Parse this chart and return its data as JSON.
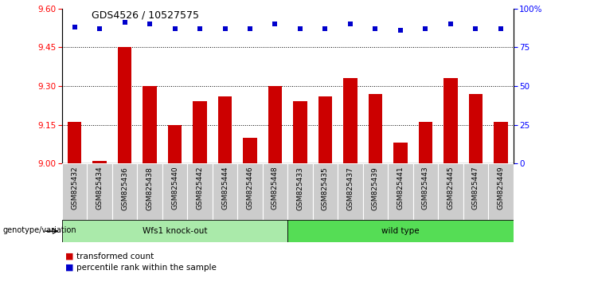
{
  "title": "GDS4526 / 10527575",
  "samples": [
    "GSM825432",
    "GSM825434",
    "GSM825436",
    "GSM825438",
    "GSM825440",
    "GSM825442",
    "GSM825444",
    "GSM825446",
    "GSM825448",
    "GSM825433",
    "GSM825435",
    "GSM825437",
    "GSM825439",
    "GSM825441",
    "GSM825443",
    "GSM825445",
    "GSM825447",
    "GSM825449"
  ],
  "bar_values": [
    9.16,
    9.01,
    9.45,
    9.3,
    9.15,
    9.24,
    9.26,
    9.1,
    9.3,
    9.24,
    9.26,
    9.33,
    9.27,
    9.08,
    9.16,
    9.33,
    9.27,
    9.16
  ],
  "percentile_values": [
    88,
    87,
    91,
    90,
    87,
    87,
    87,
    87,
    90,
    87,
    87,
    90,
    87,
    86,
    87,
    90,
    87,
    87
  ],
  "ylim_left": [
    9.0,
    9.6
  ],
  "ylim_right": [
    0,
    100
  ],
  "yticks_left": [
    9.0,
    9.15,
    9.3,
    9.45,
    9.6
  ],
  "yticks_right": [
    0,
    25,
    50,
    75,
    100
  ],
  "ytick_labels_right": [
    "0",
    "25",
    "50",
    "75",
    "100%"
  ],
  "hlines": [
    9.15,
    9.3,
    9.45
  ],
  "bar_color": "#cc0000",
  "percentile_color": "#0000cc",
  "group1_label": "Wfs1 knock-out",
  "group2_label": "wild type",
  "group1_color": "#aaeaaa",
  "group2_color": "#55dd55",
  "group1_count": 9,
  "group2_count": 9,
  "legend_bar_label": "transformed count",
  "legend_pct_label": "percentile rank within the sample",
  "genotype_label": "genotype/variation",
  "bar_width": 0.55,
  "tick_bg_color": "#cccccc",
  "tick_sep_color": "#ffffff"
}
